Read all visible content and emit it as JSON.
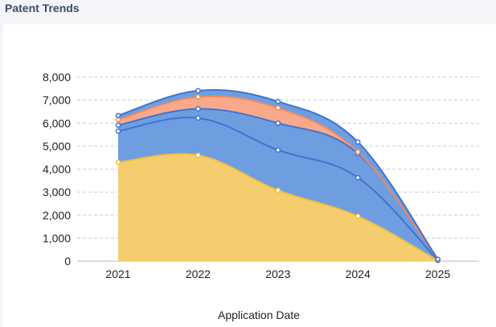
{
  "panel": {
    "title": "Patent Trends"
  },
  "chart_data": {
    "type": "area",
    "stacked": true,
    "smooth": true,
    "title": "",
    "xlabel": "Application Date",
    "ylabel": "",
    "categories": [
      "2021",
      "2022",
      "2023",
      "2024",
      "2025"
    ],
    "ylim": [
      0,
      8000
    ],
    "yticks": [
      0,
      1000,
      2000,
      3000,
      4000,
      5000,
      6000,
      7000,
      8000
    ],
    "ytick_labels": [
      "0",
      "1,000",
      "2,000",
      "3,000",
      "4,000",
      "5,000",
      "6,000",
      "7,000",
      "8,000"
    ],
    "grid": true,
    "legend": "none",
    "series": [
      {
        "values": [
          4300,
          4600,
          3080,
          1950,
          20
        ],
        "color": "#f5cd6e",
        "stroke": "#f0bf3a"
      },
      {
        "values": [
          1350,
          1620,
          1750,
          1680,
          20
        ],
        "color": "#6f9ee0",
        "stroke": "#3f73d4"
      },
      {
        "values": [
          260,
          400,
          1170,
          1050,
          20
        ],
        "color": "#6f9ee0",
        "stroke": "#3f73d4"
      },
      {
        "values": [
          240,
          520,
          660,
          70,
          10
        ],
        "color": "#f7a98a",
        "stroke": "#f08a5e"
      },
      {
        "values": [
          180,
          270,
          280,
          430,
          10
        ],
        "color": "#6f9ee0",
        "stroke": "#3f73d4"
      }
    ]
  }
}
